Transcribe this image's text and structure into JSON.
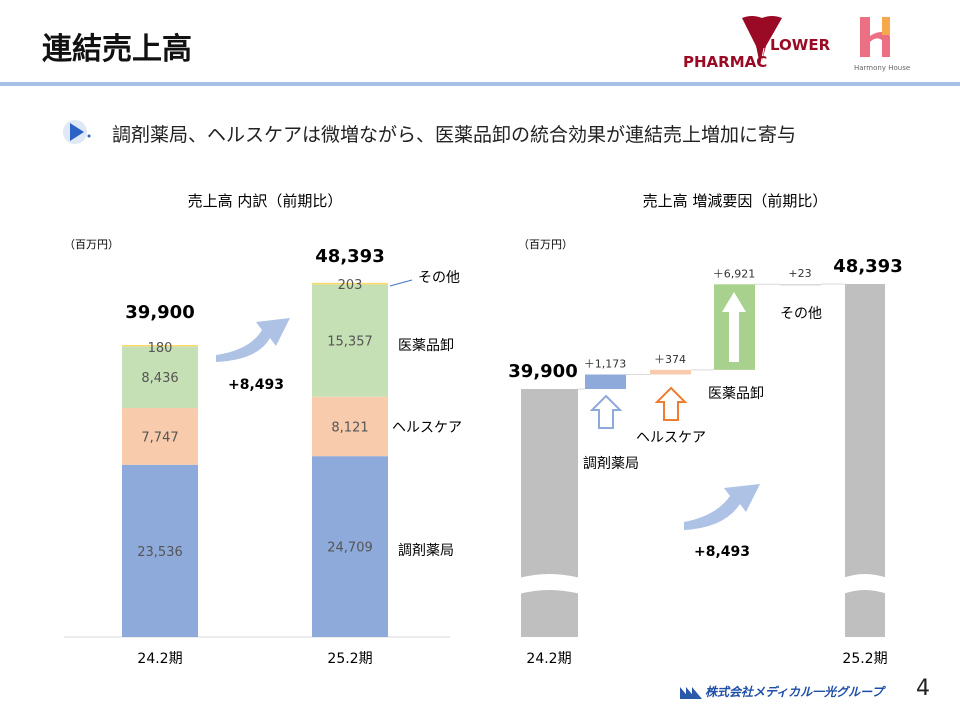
{
  "header": {
    "title": "連結売上高",
    "logos": [
      "PHARMAC FLOWER",
      "Harmony House"
    ],
    "logo_text_pharmac": "PHARMAC",
    "logo_text_lower": "LOWER",
    "logo_text_harmony": "Harmony House"
  },
  "bullet": {
    "icon": "play-triangle-icon",
    "text": "調剤薬局、ヘルスケアは微増ながら、医薬品卸の統合効果が連結売上増加に寄与"
  },
  "footer": {
    "company": "株式会社メディカル一光グループ",
    "page": "4"
  },
  "colors": {
    "dispensing": "#8eaadb",
    "healthcare": "#f8cbad",
    "wholesale": "#c5e0b4",
    "other": "#ffd966",
    "total": "#bfbfbf",
    "wf_wholesale": "#a9d18e"
  },
  "chart_data": [
    {
      "type": "bar",
      "stacked": true,
      "title": "売上高 内訳（前期比）",
      "unit": "（百万円）",
      "categories": [
        "24.2期",
        "25.2期"
      ],
      "series": [
        {
          "name": "調剤薬局",
          "values": [
            23536,
            24709
          ]
        },
        {
          "name": "ヘルスケア",
          "values": [
            7747,
            8121
          ]
        },
        {
          "name": "医薬品卸",
          "values": [
            8436,
            15357
          ]
        },
        {
          "name": "その他",
          "values": [
            180,
            203
          ]
        }
      ],
      "value_labels": [
        [
          "23,536",
          "7,747",
          "8,436",
          "180"
        ],
        [
          "24,709",
          "8,121",
          "15,357",
          "203"
        ]
      ],
      "totals": [
        39900,
        48393
      ],
      "total_labels": [
        "39,900",
        "48,393"
      ],
      "change_label": "+8,493",
      "ylim": [
        0,
        48393
      ]
    },
    {
      "type": "waterfall",
      "title": "売上高 増減要因（前期比）",
      "unit": "（百万円）",
      "start": {
        "label": "24.2期",
        "value": 39900,
        "value_label": "39,900"
      },
      "steps": [
        {
          "name": "調剤薬局",
          "value": 1173,
          "value_label": "＋1,173"
        },
        {
          "name": "ヘルスケア",
          "value": 374,
          "value_label": "＋374"
        },
        {
          "name": "医薬品卸",
          "value": 6921,
          "value_label": "＋6,921"
        },
        {
          "name": "その他",
          "value": 23,
          "value_label": "+23"
        }
      ],
      "end": {
        "label": "25.2期",
        "value": 48393,
        "value_label": "48,393"
      },
      "change_label": "+8,493",
      "axis_break": true
    }
  ]
}
